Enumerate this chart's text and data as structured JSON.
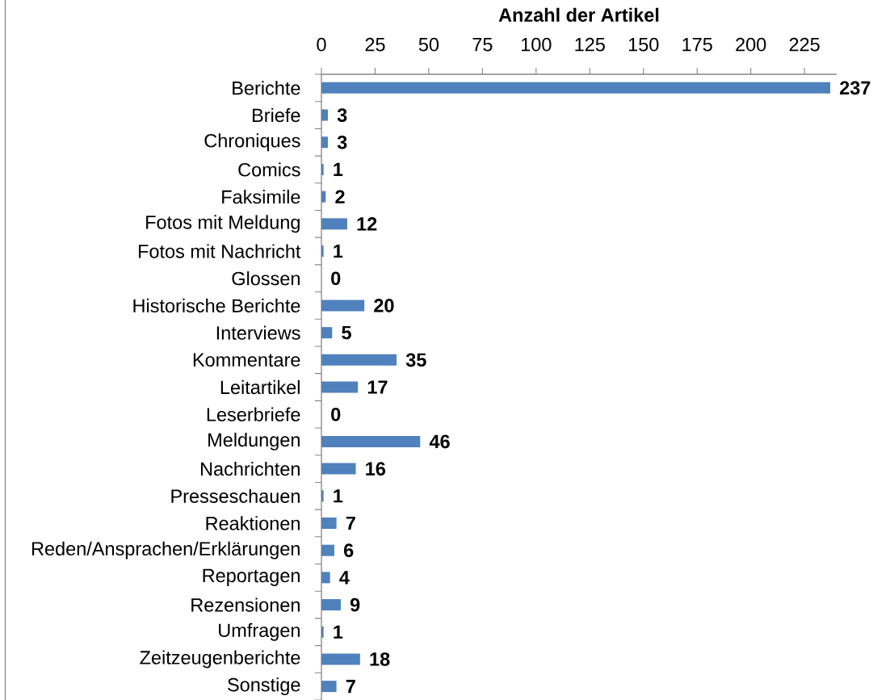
{
  "chart_data": {
    "type": "bar",
    "orientation": "horizontal",
    "xlabel": "Anzahl der Artikel",
    "categories": [
      "Berichte",
      "Briefe",
      "Chroniques",
      "Comics",
      "Faksimile",
      "Fotos mit Meldung",
      "Fotos mit Nachricht",
      "Glossen",
      "Historische Berichte",
      "Interviews",
      "Kommentare",
      "Leitartikel",
      "Leserbriefe",
      "Meldungen",
      "Nachrichten",
      "Presseschauen",
      "Reaktionen",
      "Reden/Ansprachen/Erklärungen",
      "Reportagen",
      "Rezensionen",
      "Umfragen",
      "Zeitzeugenberichte",
      "Sonstige"
    ],
    "values": [
      237,
      3,
      3,
      1,
      2,
      12,
      1,
      0,
      20,
      5,
      35,
      17,
      0,
      46,
      16,
      1,
      7,
      6,
      4,
      9,
      1,
      18,
      7
    ],
    "color": "#4f81bd",
    "xlim": [
      0,
      240
    ],
    "xticks": [
      0,
      25,
      50,
      75,
      100,
      125,
      150,
      175,
      200,
      225
    ],
    "data_labels": true
  }
}
